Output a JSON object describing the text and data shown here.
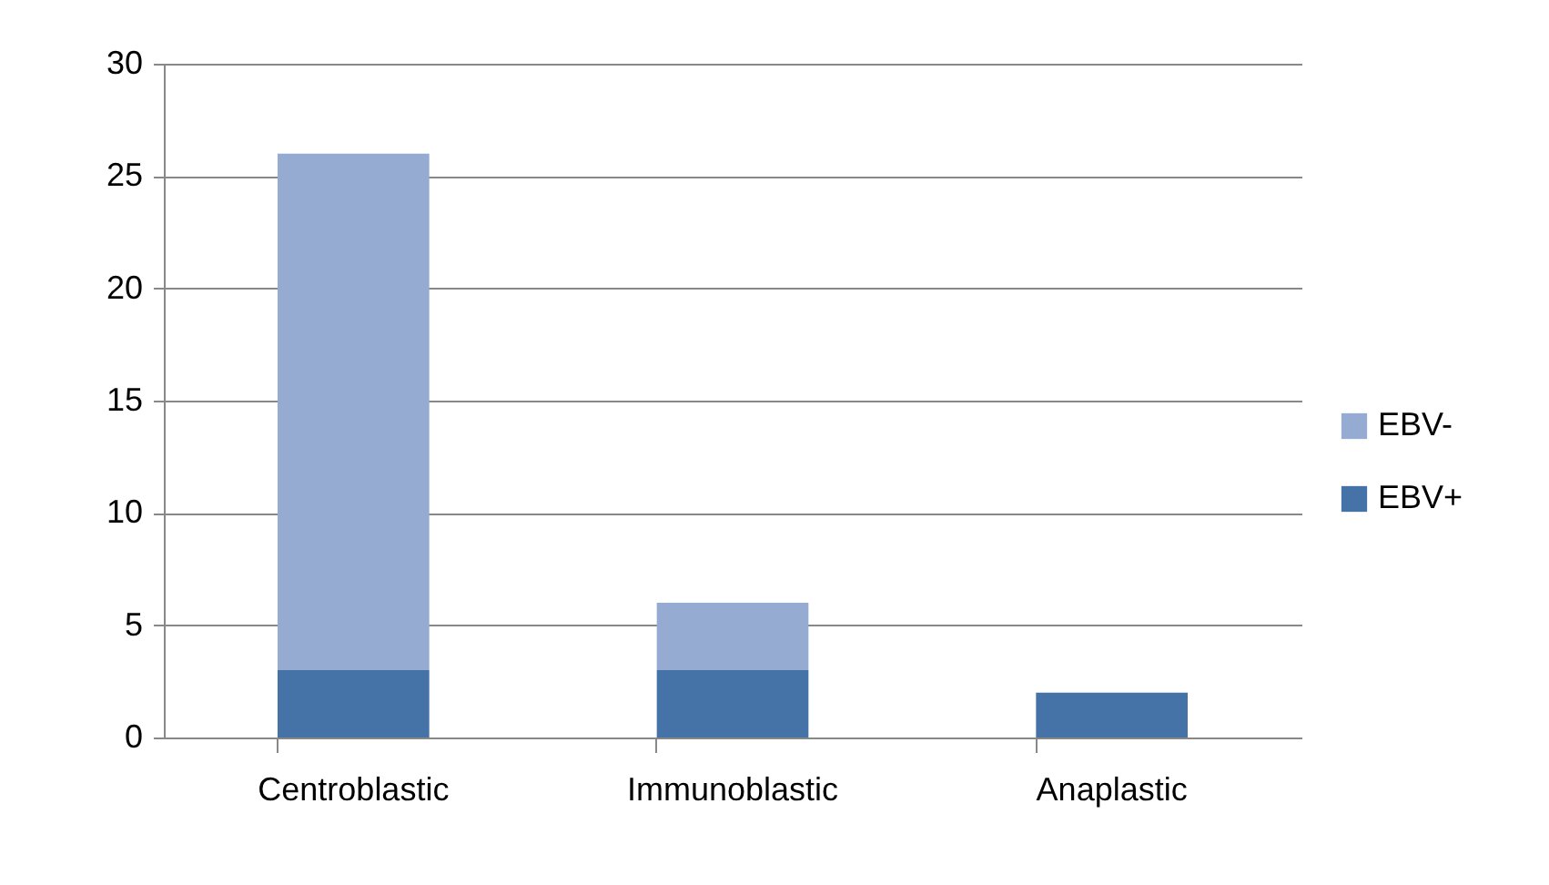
{
  "chart_data": {
    "type": "bar",
    "stacked": true,
    "categories": [
      "Centroblastic",
      "Immunoblastic",
      "Anaplastic"
    ],
    "series": [
      {
        "name": "EBV+",
        "color": "#4572a7",
        "values": [
          3,
          3,
          2
        ]
      },
      {
        "name": "EBV-",
        "color": "#95abd1",
        "values": [
          23,
          3,
          0
        ]
      }
    ],
    "ylim": [
      0,
      30
    ],
    "yticks": [
      0,
      5,
      10,
      15,
      20,
      25,
      30
    ],
    "grid": "y",
    "legend": "right"
  }
}
